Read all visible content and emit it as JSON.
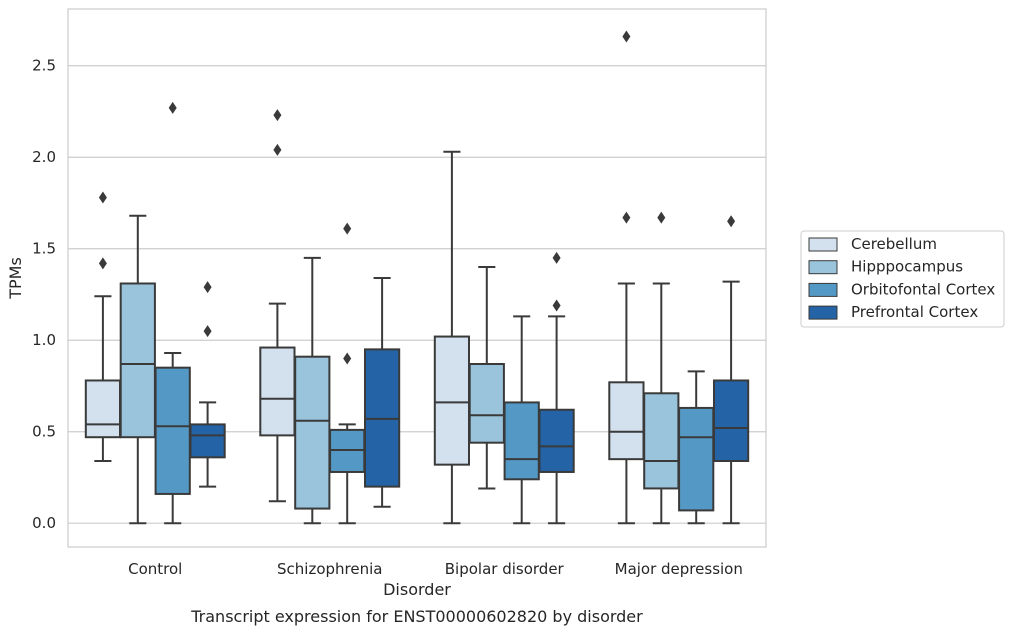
{
  "caption": "Transcript expression for ENST00000602820 by disorder",
  "chart_data": {
    "type": "boxplot",
    "xlabel": "Disorder",
    "ylabel": "TPMs",
    "ylim": [
      -0.13,
      2.81
    ],
    "yticks": [
      "0.0",
      "0.5",
      "1.0",
      "1.5",
      "2.0",
      "2.5"
    ],
    "grid": true,
    "legend_position": "right",
    "categories": [
      "Control",
      "Schizophrenia",
      "Bipolar disorder",
      "Major depression"
    ],
    "series": [
      {
        "name": "Cerebellum",
        "color": "#d3e1ef",
        "boxes": [
          {
            "whislo": 0.34,
            "q1": 0.47,
            "med": 0.54,
            "q3": 0.78,
            "whishi": 1.24,
            "fliers": [
              1.42,
              1.78
            ]
          },
          {
            "whislo": 0.12,
            "q1": 0.48,
            "med": 0.68,
            "q3": 0.96,
            "whishi": 1.2,
            "fliers": [
              2.04,
              2.23
            ]
          },
          {
            "whislo": 0.0,
            "q1": 0.32,
            "med": 0.66,
            "q3": 1.02,
            "whishi": 2.03,
            "fliers": []
          },
          {
            "whislo": 0.0,
            "q1": 0.35,
            "med": 0.5,
            "q3": 0.77,
            "whishi": 1.31,
            "fliers": [
              1.67,
              2.66
            ]
          }
        ]
      },
      {
        "name": "Hipppocampus",
        "color": "#9ac3dc",
        "boxes": [
          {
            "whislo": 0.0,
            "q1": 0.47,
            "med": 0.87,
            "q3": 1.31,
            "whishi": 1.68,
            "fliers": []
          },
          {
            "whislo": 0.0,
            "q1": 0.08,
            "med": 0.56,
            "q3": 0.91,
            "whishi": 1.45,
            "fliers": []
          },
          {
            "whislo": 0.19,
            "q1": 0.44,
            "med": 0.59,
            "q3": 0.87,
            "whishi": 1.4,
            "fliers": []
          },
          {
            "whislo": 0.0,
            "q1": 0.19,
            "med": 0.34,
            "q3": 0.71,
            "whishi": 1.31,
            "fliers": [
              1.67
            ]
          }
        ]
      },
      {
        "name": "Orbitofontal Cortex",
        "color": "#5499c5",
        "boxes": [
          {
            "whislo": 0.0,
            "q1": 0.16,
            "med": 0.53,
            "q3": 0.85,
            "whishi": 0.93,
            "fliers": [
              2.27
            ]
          },
          {
            "whislo": 0.0,
            "q1": 0.28,
            "med": 0.4,
            "q3": 0.51,
            "whishi": 0.54,
            "fliers": [
              0.9,
              1.61
            ]
          },
          {
            "whislo": 0.0,
            "q1": 0.24,
            "med": 0.35,
            "q3": 0.66,
            "whishi": 1.13,
            "fliers": []
          },
          {
            "whislo": 0.0,
            "q1": 0.07,
            "med": 0.47,
            "q3": 0.63,
            "whishi": 0.83,
            "fliers": []
          }
        ]
      },
      {
        "name": "Prefrontal Cortex",
        "color": "#2363a6",
        "boxes": [
          {
            "whislo": 0.2,
            "q1": 0.36,
            "med": 0.48,
            "q3": 0.54,
            "whishi": 0.66,
            "fliers": [
              1.05,
              1.29
            ]
          },
          {
            "whislo": 0.09,
            "q1": 0.2,
            "med": 0.57,
            "q3": 0.95,
            "whishi": 1.34,
            "fliers": []
          },
          {
            "whislo": 0.0,
            "q1": 0.28,
            "med": 0.42,
            "q3": 0.62,
            "whishi": 1.13,
            "fliers": [
              1.19,
              1.45
            ]
          },
          {
            "whislo": 0.0,
            "q1": 0.34,
            "med": 0.52,
            "q3": 0.78,
            "whishi": 1.32,
            "fliers": [
              1.65
            ]
          }
        ]
      }
    ]
  }
}
